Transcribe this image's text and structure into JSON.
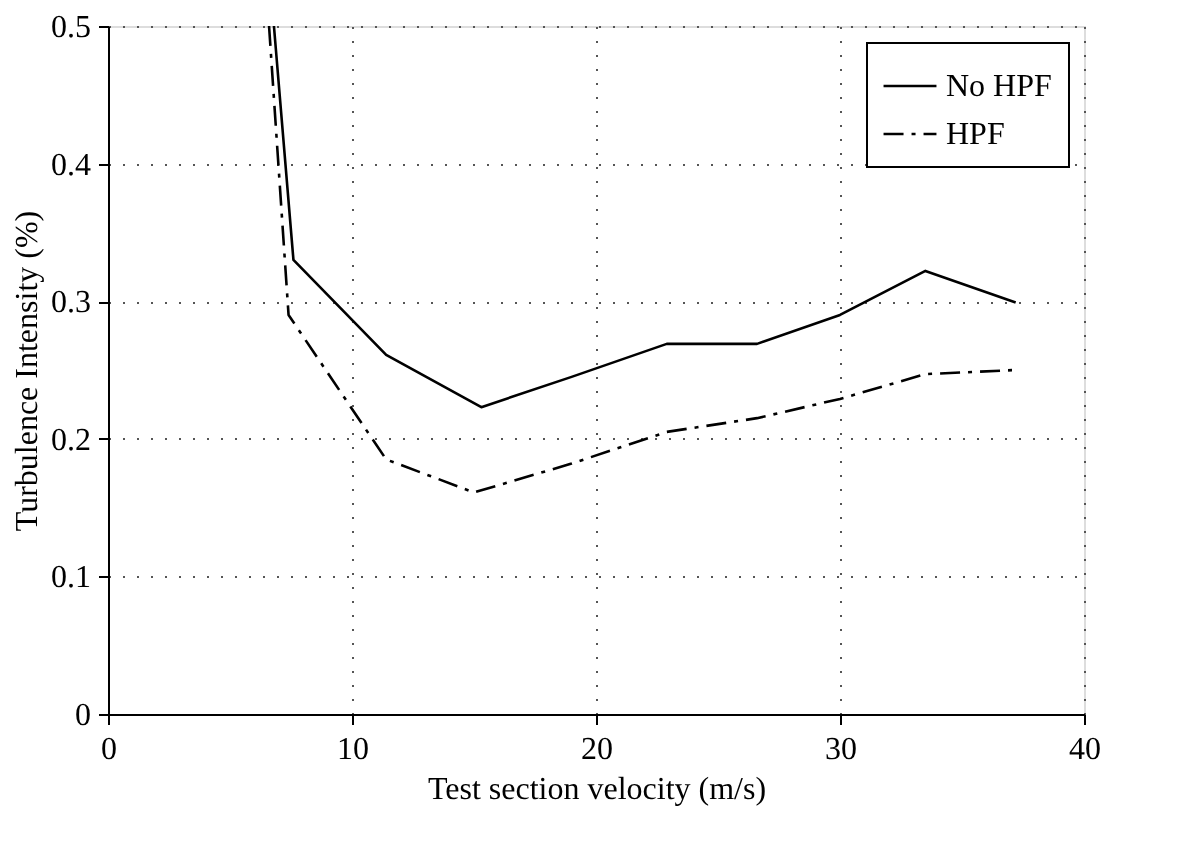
{
  "chart_data": {
    "type": "line",
    "xlabel": "Test section velocity (m/s)",
    "ylabel": "Turbulence Intensity (%)",
    "x": [
      6.8,
      7.6,
      11.4,
      15.3,
      19,
      22.9,
      26.6,
      30,
      33.5,
      37.2
    ],
    "series": [
      {
        "name": "No HPF",
        "color": "#000000",
        "line_style": "solid",
        "values": [
          0.5,
          0.33,
          0.261,
          0.223,
          0.245,
          0.269,
          0.269,
          0.29,
          0.322,
          0.299
        ]
      },
      {
        "name": "HPF",
        "color": "#000000",
        "line_style": "dashed",
        "x": [
          6.6,
          7.4,
          11.4,
          15,
          19,
          22.9,
          26.6,
          30,
          33.5,
          37.2
        ],
        "values": [
          0.5,
          0.29,
          0.185,
          0.161,
          0.182,
          0.205,
          0.215,
          0.229,
          0.247,
          0.25
        ]
      }
    ],
    "xlim": [
      0,
      40
    ],
    "xticks": [
      0,
      10,
      20,
      30,
      40
    ],
    "ylim": [
      0,
      0.5
    ],
    "yticks": [
      0,
      0.1,
      0.2,
      0.3,
      0.4,
      0.5
    ],
    "grid": true,
    "legend": "top right"
  }
}
